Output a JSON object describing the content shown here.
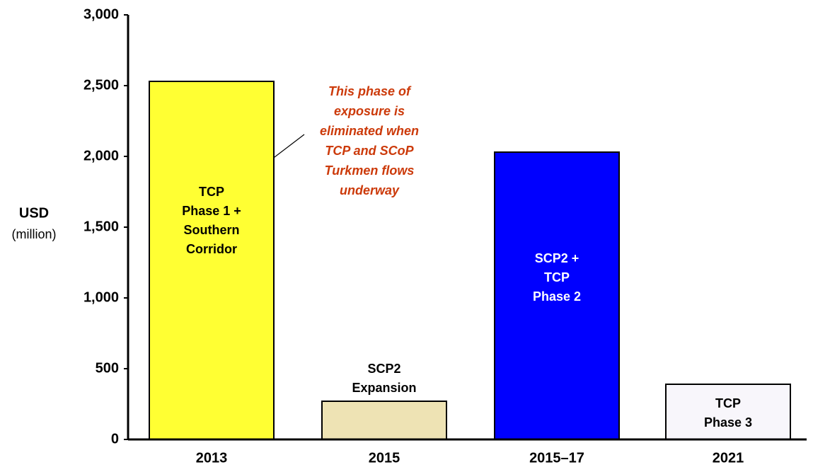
{
  "chart_data": {
    "type": "bar",
    "y_label": "USD",
    "y_label_unit": "(million)",
    "categories": [
      "2013",
      "2015",
      "2015–17",
      "2021"
    ],
    "values": [
      2530,
      270,
      2030,
      390
    ],
    "colors": [
      "#ffff33",
      "#eee3b4",
      "#0000ff",
      "#f8f6fb"
    ],
    "bar_labels": [
      [
        "TCP",
        "Phase 1 +",
        "Southern",
        "Corridor"
      ],
      [
        "SCP2",
        "Expansion"
      ],
      [
        "SCP2 +",
        "TCP",
        "Phase 2"
      ],
      [
        "TCP",
        "Phase 3"
      ]
    ],
    "annotation": [
      "This phase of",
      "exposure is",
      "eliminated when",
      "TCP and SCoP",
      "Turkmen flows",
      "underway"
    ],
    "ylim": [
      0,
      3000
    ],
    "yticks": [
      0,
      500,
      {
        "value": 1000,
        "label": "1,000"
      },
      {
        "value": 1500,
        "label": "1,500"
      },
      {
        "value": 2000,
        "label": "2,000"
      },
      {
        "value": 2500,
        "label": "2,500"
      },
      {
        "value": 3000,
        "label": "3,000"
      }
    ]
  }
}
